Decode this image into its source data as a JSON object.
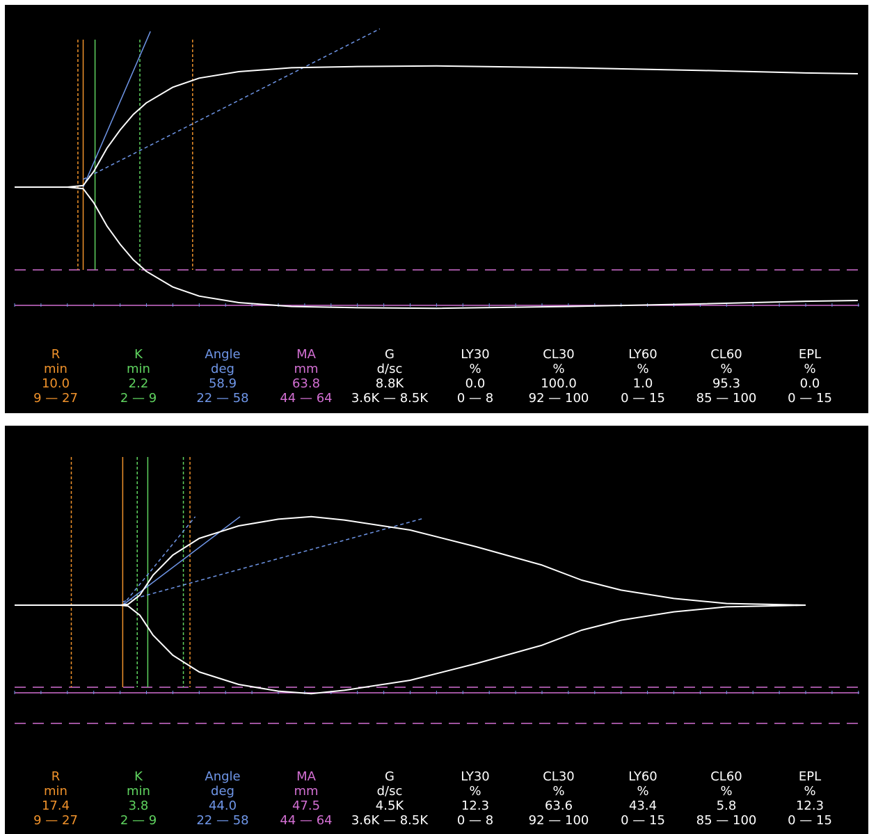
{
  "colors": {
    "R": "#f0922b",
    "K": "#5fd35f",
    "Angle": "#6f96e8",
    "MA": "#d36fd3",
    "G": "#ffffff",
    "LY30": "#ffffff",
    "CL30": "#ffffff",
    "LY60": "#ffffff",
    "CL60": "#ffffff",
    "EPL": "#ffffff",
    "trace": "#ffffff",
    "background": "#000000"
  },
  "chart_data": [
    {
      "type": "line",
      "series": [
        {
          "values": [
            [
              0,
              0
            ],
            [
              4,
              0
            ],
            [
              5.2,
              0.6
            ],
            [
              6,
              6
            ],
            [
              7,
              15
            ],
            [
              8,
              22
            ],
            [
              9,
              28
            ],
            [
              10,
              32.5
            ],
            [
              12,
              38.5
            ],
            [
              14,
              42
            ],
            [
              17,
              44.5
            ],
            [
              21,
              46
            ],
            [
              26,
              46.5
            ],
            [
              32,
              46.7
            ],
            [
              42,
              46
            ],
            [
              52,
              45
            ],
            [
              60,
              44
            ],
            [
              64,
              43.7
            ]
          ]
        }
      ],
      "markers": {
        "R_solid": 5.2,
        "R_dashed": 4.8,
        "K_solid": 6.1,
        "K_dashed": 9.5,
        "angle_tangent_end": [
          10.3,
          60
        ],
        "angle_dashed_end": [
          27.7,
          61
        ],
        "angle_dashed_start": [
          5.2,
          3
        ],
        "orange_dashed_right": 13.5
      },
      "x_range": [
        0,
        64
      ],
      "parameters": {
        "labels": [
          "R",
          "K",
          "Angle",
          "MA",
          "G",
          "LY30",
          "CL30",
          "LY60",
          "CL60",
          "EPL"
        ],
        "units": [
          "min",
          "min",
          "deg",
          "mm",
          "d/sc",
          "%",
          "%",
          "%",
          "%",
          "%"
        ],
        "values": [
          "10.0",
          "2.2",
          "58.9",
          "63.8",
          "8.8K",
          "0.0",
          "100.0",
          "1.0",
          "95.3",
          "0.0"
        ],
        "ranges": [
          "9 — 27",
          "2 — 9",
          "22 — 58",
          "44 — 64",
          "3.6K — 8.5K",
          "0 — 8",
          "92 — 100",
          "0 — 15",
          "85 — 100",
          "0 — 15"
        ]
      }
    },
    {
      "type": "line",
      "series": [
        {
          "values": [
            [
              0,
              0
            ],
            [
              8,
              0
            ],
            [
              8.6,
              0.5
            ],
            [
              9.5,
              6
            ],
            [
              10.5,
              18
            ],
            [
              12,
              30
            ],
            [
              14,
              40
            ],
            [
              17,
              47.5
            ],
            [
              20,
              51.5
            ],
            [
              22.5,
              53
            ],
            [
              25,
              51
            ],
            [
              30,
              45
            ],
            [
              35,
              35
            ],
            [
              40,
              24
            ],
            [
              43,
              15
            ],
            [
              46,
              9
            ],
            [
              50,
              4
            ],
            [
              54,
              1
            ],
            [
              57,
              0.5
            ],
            [
              60,
              0
            ]
          ]
        }
      ],
      "markers": {
        "R_dashed": 4.3,
        "R_solid": 8.2,
        "K_dashed": 9.3,
        "K_solid": 10.1,
        "K_dashed_2": 12.8,
        "orange_dashed_right": 13.3,
        "angle_tangent_end": [
          17.1,
          53
        ],
        "angle_dashed_2_end": [
          13.7,
          53
        ],
        "angle_dashed_end": [
          31,
          52
        ],
        "angle_dashed_start": [
          8.2,
          2
        ]
      },
      "x_range": [
        0,
        64
      ],
      "parameters": {
        "labels": [
          "R",
          "K",
          "Angle",
          "MA",
          "G",
          "LY30",
          "CL30",
          "LY60",
          "CL60",
          "EPL"
        ],
        "units": [
          "min",
          "min",
          "deg",
          "mm",
          "d/sc",
          "%",
          "%",
          "%",
          "%",
          "%"
        ],
        "values": [
          "17.4",
          "3.8",
          "44.0",
          "47.5",
          "4.5K",
          "12.3",
          "63.6",
          "43.4",
          "5.8",
          "12.3"
        ],
        "ranges": [
          "9 — 27",
          "2 — 9",
          "22 — 58",
          "44 — 64",
          "3.6K — 8.5K",
          "0 — 8",
          "92 — 100",
          "0 — 15",
          "85 — 100",
          "0 — 15"
        ]
      }
    }
  ]
}
